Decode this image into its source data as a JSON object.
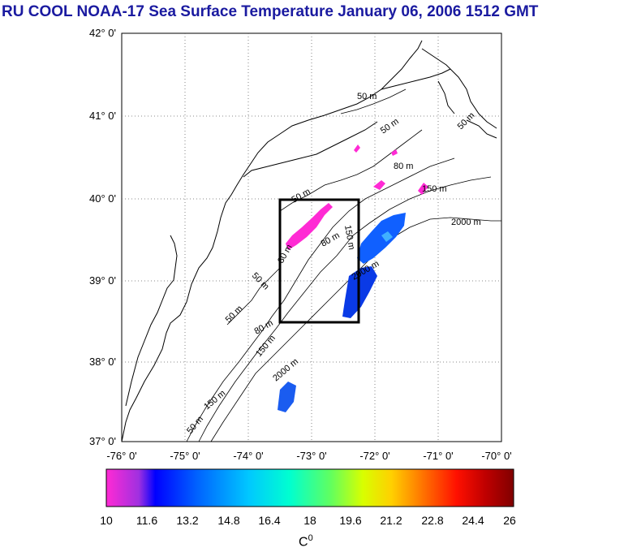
{
  "title": "RU COOL  NOAA-17 Sea Surface Temperature January 06, 2006 1512 GMT",
  "lat_labels": [
    "42° 0'",
    "41° 0'",
    "40° 0'",
    "39° 0'",
    "38° 0'",
    "37° 0'"
  ],
  "lon_labels": [
    "-76° 0'",
    "-75° 0'",
    "-74° 0'",
    "-73° 0'",
    "-72° 0'",
    "-71° 0'",
    "-70° 0'"
  ],
  "contour_labels": [
    "50 m",
    "50 m",
    "50 m",
    "80 m",
    "150 m",
    "2000 m",
    "50 m",
    "80 m",
    "150 m",
    "80 m",
    "2000 m",
    "50 m",
    "50 m",
    "150 m",
    "2000 m",
    "150 m",
    "50 m",
    "80 m"
  ],
  "colorbar": {
    "ticks": [
      "10",
      "11.6",
      "13.2",
      "14.8",
      "16.4",
      "18",
      "19.6",
      "21.2",
      "22.8",
      "24.4",
      "26"
    ],
    "unit": "C",
    "unit_sup": "0",
    "colors": [
      "#ff2ad4",
      "#a030e0",
      "#0000ff",
      "#0060ff",
      "#00c8ff",
      "#00ffd0",
      "#60ff60",
      "#d8ff00",
      "#ffd000",
      "#ff7000",
      "#ff1000",
      "#c00000",
      "#800000"
    ]
  },
  "study_box": {
    "lon": [
      -73.4,
      -72.4
    ],
    "lat": [
      38.5,
      40.0
    ]
  }
}
